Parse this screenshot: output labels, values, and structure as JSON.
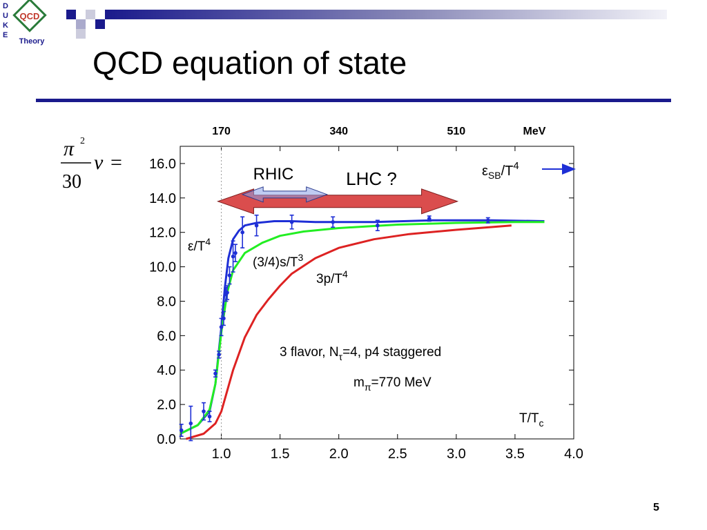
{
  "logo": {
    "letters": [
      "D",
      "U",
      "K",
      "E"
    ],
    "mark": "QCD",
    "caption": "Theory"
  },
  "slide": {
    "title": "QCD equation of state",
    "number": "5"
  },
  "formula": {
    "numerator": "π",
    "exponent": "2",
    "denominator": "30",
    "variable": "ν",
    "equals": "="
  },
  "chart_data": {
    "type": "line",
    "xlabel": "T/T",
    "xlabel_sub": "c",
    "xlim": [
      0.65,
      4.0
    ],
    "ylim": [
      0.0,
      17.0
    ],
    "x_ticks": [
      "1.0",
      "1.5",
      "2.0",
      "2.5",
      "3.0",
      "3.5",
      "4.0"
    ],
    "y_ticks": [
      "0.0",
      "2.0",
      "4.0",
      "6.0",
      "8.0",
      "10.0",
      "12.0",
      "14.0",
      "16.0"
    ],
    "top_axis": {
      "unit": "MeV",
      "ticks": [
        {
          "label": "170",
          "x": 1.0
        },
        {
          "label": "340",
          "x": 2.0
        },
        {
          "label": "510",
          "x": 3.0
        }
      ]
    },
    "critical_line_x": 1.0,
    "series": [
      {
        "color": "#1e2fd6",
        "x": [
          0.65,
          0.8,
          0.9,
          0.95,
          1.0,
          1.03,
          1.06,
          1.1,
          1.15,
          1.2,
          1.3,
          1.45,
          1.6,
          1.8,
          2.0,
          2.3,
          2.8,
          3.3,
          3.75
        ],
        "y": [
          0.3,
          0.8,
          1.6,
          3.2,
          6.5,
          8.8,
          10.5,
          11.6,
          12.1,
          12.4,
          12.55,
          12.65,
          12.65,
          12.6,
          12.6,
          12.6,
          12.7,
          12.7,
          12.65
        ]
      },
      {
        "color": "#22ee22",
        "x": [
          0.65,
          0.8,
          0.9,
          0.95,
          1.0,
          1.05,
          1.1,
          1.2,
          1.35,
          1.5,
          1.7,
          2.0,
          2.5,
          3.0,
          3.5,
          3.75
        ],
        "y": [
          0.3,
          0.8,
          1.7,
          3.2,
          6.2,
          8.5,
          9.8,
          10.8,
          11.4,
          11.8,
          12.05,
          12.25,
          12.45,
          12.55,
          12.6,
          12.6
        ]
      },
      {
        "color": "#dd2222",
        "x": [
          0.7,
          0.85,
          0.95,
          1.0,
          1.05,
          1.1,
          1.2,
          1.3,
          1.4,
          1.5,
          1.6,
          1.8,
          2.0,
          2.3,
          2.6,
          3.0,
          3.47
        ],
        "y": [
          0.0,
          0.3,
          0.9,
          1.6,
          2.8,
          4.0,
          5.9,
          7.2,
          8.1,
          8.9,
          9.6,
          10.5,
          11.1,
          11.6,
          11.9,
          12.15,
          12.4
        ]
      }
    ],
    "data_points": {
      "color": "#1e2fd6",
      "points": [
        {
          "x": 0.66,
          "y": 0.5,
          "err": 0.35
        },
        {
          "x": 0.74,
          "y": 0.9,
          "err": 1.0
        },
        {
          "x": 0.85,
          "y": 1.6,
          "err": 0.5
        },
        {
          "x": 0.9,
          "y": 1.3,
          "err": 0.3
        },
        {
          "x": 0.95,
          "y": 3.8,
          "err": 0.2
        },
        {
          "x": 0.98,
          "y": 4.9,
          "err": 0.2
        },
        {
          "x": 1.0,
          "y": 6.5,
          "err": 0.5
        },
        {
          "x": 1.02,
          "y": 7.0,
          "err": 0.4
        },
        {
          "x": 1.04,
          "y": 8.4,
          "err": 0.4
        },
        {
          "x": 1.05,
          "y": 8.5,
          "err": 0.4
        },
        {
          "x": 1.07,
          "y": 9.5,
          "err": 0.5
        },
        {
          "x": 1.1,
          "y": 10.6,
          "err": 0.9
        },
        {
          "x": 1.12,
          "y": 10.8,
          "err": 0.5
        },
        {
          "x": 1.18,
          "y": 12.0,
          "err": 0.9
        },
        {
          "x": 1.3,
          "y": 12.4,
          "err": 0.6
        },
        {
          "x": 1.6,
          "y": 12.6,
          "err": 0.4
        },
        {
          "x": 1.95,
          "y": 12.6,
          "err": 0.3
        },
        {
          "x": 2.33,
          "y": 12.4,
          "err": 0.3
        },
        {
          "x": 2.77,
          "y": 12.8,
          "err": 0.15
        },
        {
          "x": 3.27,
          "y": 12.7,
          "err": 0.15
        }
      ]
    },
    "annotations": {
      "eps_label": "ε/T",
      "eps_sup": "4",
      "s_label": "(3/4)s/T",
      "s_sup": "3",
      "p_label": "3p/T",
      "p_sup": "4",
      "sb_prefix": "ε",
      "sb_sub": "SB",
      "sb_rest": "/T",
      "sb_sup": "4",
      "info_line1_a": "3 flavor, N",
      "info_line1_sub": "τ",
      "info_line1_b": "=4, p4 staggered",
      "info_line2_a": "m",
      "info_line2_sub": "π",
      "info_line2_b": "=770 MeV"
    },
    "ranges": {
      "rhic": {
        "label": "RHIC",
        "from": 1.18,
        "to": 1.9,
        "color": "#8aa0e8"
      },
      "lhc": {
        "label": "LHC ?",
        "from": 0.97,
        "to": 3.01,
        "color": "#d63a3a",
        "label_color": "#e02020"
      }
    }
  }
}
